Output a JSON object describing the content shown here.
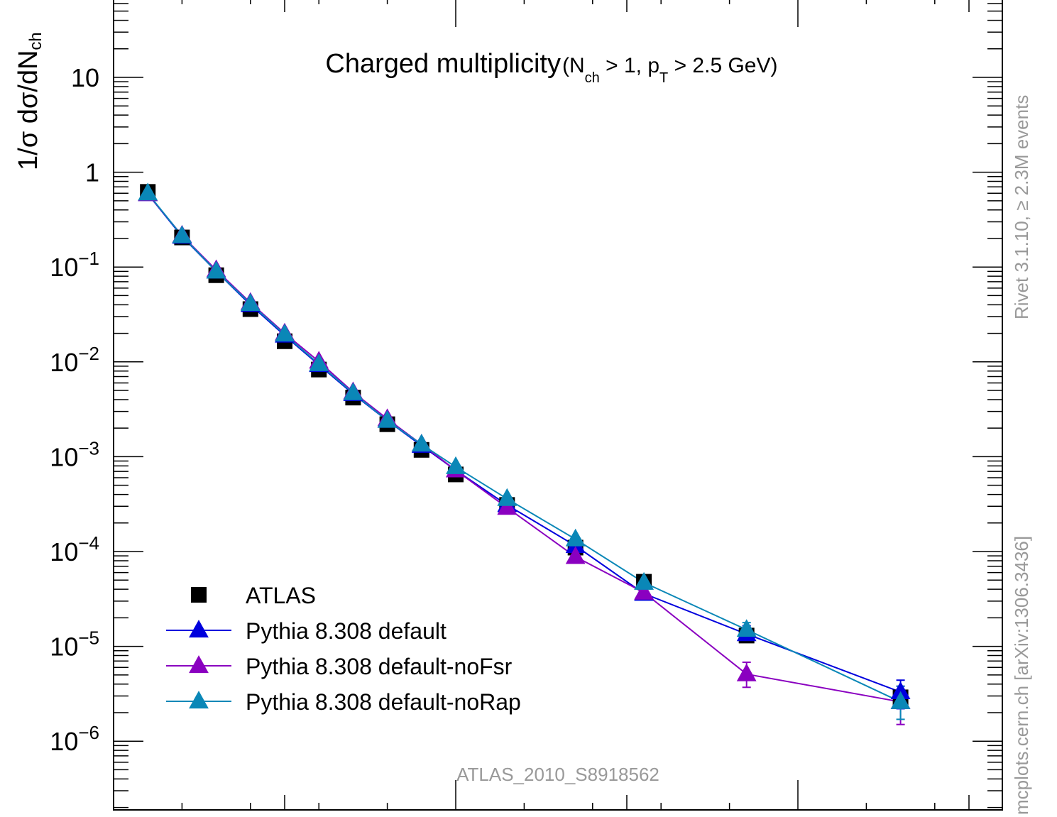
{
  "chart_data": {
    "type": "scatter",
    "title": "Charged multiplicity",
    "title_sub_parts": [
      "(N",
      "ch",
      " > 1, p",
      "T",
      " > 2.5 GeV)"
    ],
    "ylabel_main": "1/σ dσ/dN",
    "ylabel_sub": "ch",
    "yscale": "log",
    "ylim": [
      4e-07,
      50
    ],
    "xlim": [
      0,
      26
    ],
    "y_ticks": [
      {
        "v": 10,
        "mant": "10",
        "exp": ""
      },
      {
        "v": 1,
        "mant": "1",
        "exp": ""
      },
      {
        "v": 0.1,
        "mant": "10",
        "exp": "−1"
      },
      {
        "v": 0.01,
        "mant": "10",
        "exp": "−2"
      },
      {
        "v": 0.001,
        "mant": "10",
        "exp": "−3"
      },
      {
        "v": 0.0001,
        "mant": "10",
        "exp": "−4"
      },
      {
        "v": 1e-05,
        "mant": "10",
        "exp": "−5"
      },
      {
        "v": 1e-06,
        "mant": "10",
        "exp": "−6"
      }
    ],
    "x": [
      1,
      2,
      3,
      4,
      5,
      6,
      7,
      8,
      9,
      10,
      11.5,
      13.5,
      15.5,
      18.5,
      23
    ],
    "series": [
      {
        "name": "ATLAS",
        "marker": "square",
        "color": "#000000",
        "values": [
          0.62,
          0.205,
          0.082,
          0.036,
          0.0165,
          0.0083,
          0.0042,
          0.0022,
          0.00118,
          0.00065,
          0.00031,
          0.00011,
          4.8e-05,
          1.3e-05,
          2.9e-06
        ]
      },
      {
        "name": "Pythia 8.308 default",
        "marker": "triangle",
        "color": "#0000dd",
        "values": [
          0.59,
          0.21,
          0.09,
          0.04,
          0.019,
          0.0093,
          0.0046,
          0.0024,
          0.00131,
          0.00072,
          0.00031,
          0.000115,
          3.6e-05,
          1.35e-05,
          3.3e-06
        ]
      },
      {
        "name": "Pythia 8.308 default-noFsr",
        "marker": "triangle",
        "color": "#8a00c0",
        "values": [
          0.59,
          0.215,
          0.093,
          0.042,
          0.02,
          0.0101,
          0.0048,
          0.0025,
          0.00135,
          0.00072,
          0.00029,
          8.8e-05,
          3.7e-05,
          5.1e-06,
          2.6e-06
        ]
      },
      {
        "name": "Pythia 8.308 default-noRap",
        "marker": "triangle",
        "color": "#0a87b7",
        "values": [
          0.6,
          0.213,
          0.09,
          0.041,
          0.0195,
          0.0095,
          0.0047,
          0.0024,
          0.00135,
          0.00078,
          0.00036,
          0.000135,
          4.7e-05,
          1.5e-05,
          2.6e-06
        ]
      }
    ],
    "error_bars": [
      {
        "series": 1,
        "index": 13,
        "lo": 1.2e-05,
        "hi": 1.65e-05
      },
      {
        "series": 2,
        "index": 13,
        "lo": 3.7e-06,
        "hi": 6.8e-06
      },
      {
        "series": 3,
        "index": 13,
        "lo": 1.28e-05,
        "hi": 1.78e-05
      },
      {
        "series": 1,
        "index": 14,
        "lo": 2.2e-06,
        "hi": 4.4e-06
      },
      {
        "series": 2,
        "index": 14,
        "lo": 1.5e-06,
        "hi": 3.8e-06
      },
      {
        "series": 3,
        "index": 14,
        "lo": 1.7e-06,
        "hi": 3.8e-06
      }
    ],
    "legend_position": "bottom-left",
    "analysis_label": "ATLAS_2010_S8918562",
    "side_label_top": "Rivet 3.1.10, ≥ 2.3M events",
    "side_label_bottom": "mcplots.cern.ch [arXiv:1306.3436]"
  }
}
